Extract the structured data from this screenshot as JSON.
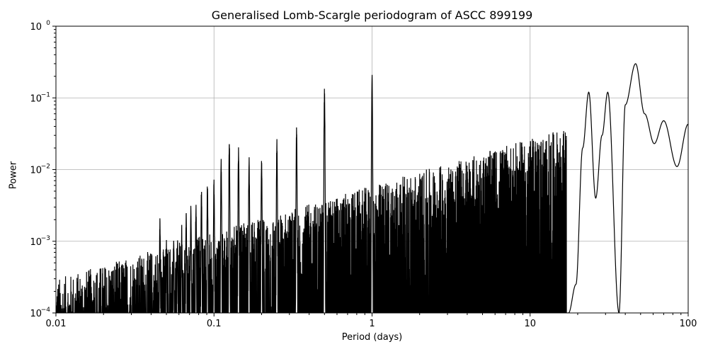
{
  "chart_data": {
    "type": "line",
    "title": "Generalised Lomb-Scargle periodogram of ASCC 899199",
    "xlabel": "Period (days)",
    "ylabel": "Power",
    "xscale": "log",
    "yscale": "log",
    "xlim": [
      0.01,
      100
    ],
    "ylim": [
      0.0001,
      1
    ],
    "grid": true,
    "xticks": [
      "0.01",
      "0.1",
      "1",
      "10",
      "100"
    ],
    "yticks": [
      "10^-4",
      "10^-3",
      "10^-2",
      "10^-1",
      "10^0"
    ],
    "line_color": "#000000",
    "alias_peaks": [
      {
        "period": 1.0,
        "power": 0.22
      },
      {
        "period": 0.5,
        "power": 0.145
      },
      {
        "period": 0.333,
        "power": 0.042
      },
      {
        "period": 0.25,
        "power": 0.027
      },
      {
        "period": 0.2,
        "power": 0.017
      },
      {
        "period": 0.1667,
        "power": 0.016
      },
      {
        "period": 0.1429,
        "power": 0.021
      },
      {
        "period": 0.125,
        "power": 0.028
      },
      {
        "period": 0.111,
        "power": 0.015
      },
      {
        "period": 0.1,
        "power": 0.0075
      },
      {
        "period": 0.0909,
        "power": 0.007
      },
      {
        "period": 0.0833,
        "power": 0.0058
      },
      {
        "period": 0.0769,
        "power": 0.0037
      },
      {
        "period": 0.0714,
        "power": 0.0035
      },
      {
        "period": 0.0667,
        "power": 0.0025
      },
      {
        "period": 0.0625,
        "power": 0.0017
      },
      {
        "period": 0.0588,
        "power": 0.0013
      },
      {
        "period": 0.0556,
        "power": 0.0012
      },
      {
        "period": 0.05,
        "power": 0.0011
      },
      {
        "period": 0.0455,
        "power": 0.0022
      }
    ],
    "long_period_curve": [
      {
        "period": 17.5,
        "power": 0.0001
      },
      {
        "period": 19.5,
        "power": 0.00025
      },
      {
        "period": 21.5,
        "power": 0.02
      },
      {
        "period": 23.5,
        "power": 0.12
      },
      {
        "period": 26.0,
        "power": 0.004
      },
      {
        "period": 28.5,
        "power": 0.03
      },
      {
        "period": 31.0,
        "power": 0.12
      },
      {
        "period": 36.5,
        "power": 0.0001
      },
      {
        "period": 40.0,
        "power": 0.08
      },
      {
        "period": 46.5,
        "power": 0.3
      },
      {
        "period": 53.0,
        "power": 0.06
      },
      {
        "period": 61.0,
        "power": 0.023
      },
      {
        "period": 70.0,
        "power": 0.048
      },
      {
        "period": 85.0,
        "power": 0.011
      },
      {
        "period": 100.0,
        "power": 0.043
      }
    ]
  }
}
